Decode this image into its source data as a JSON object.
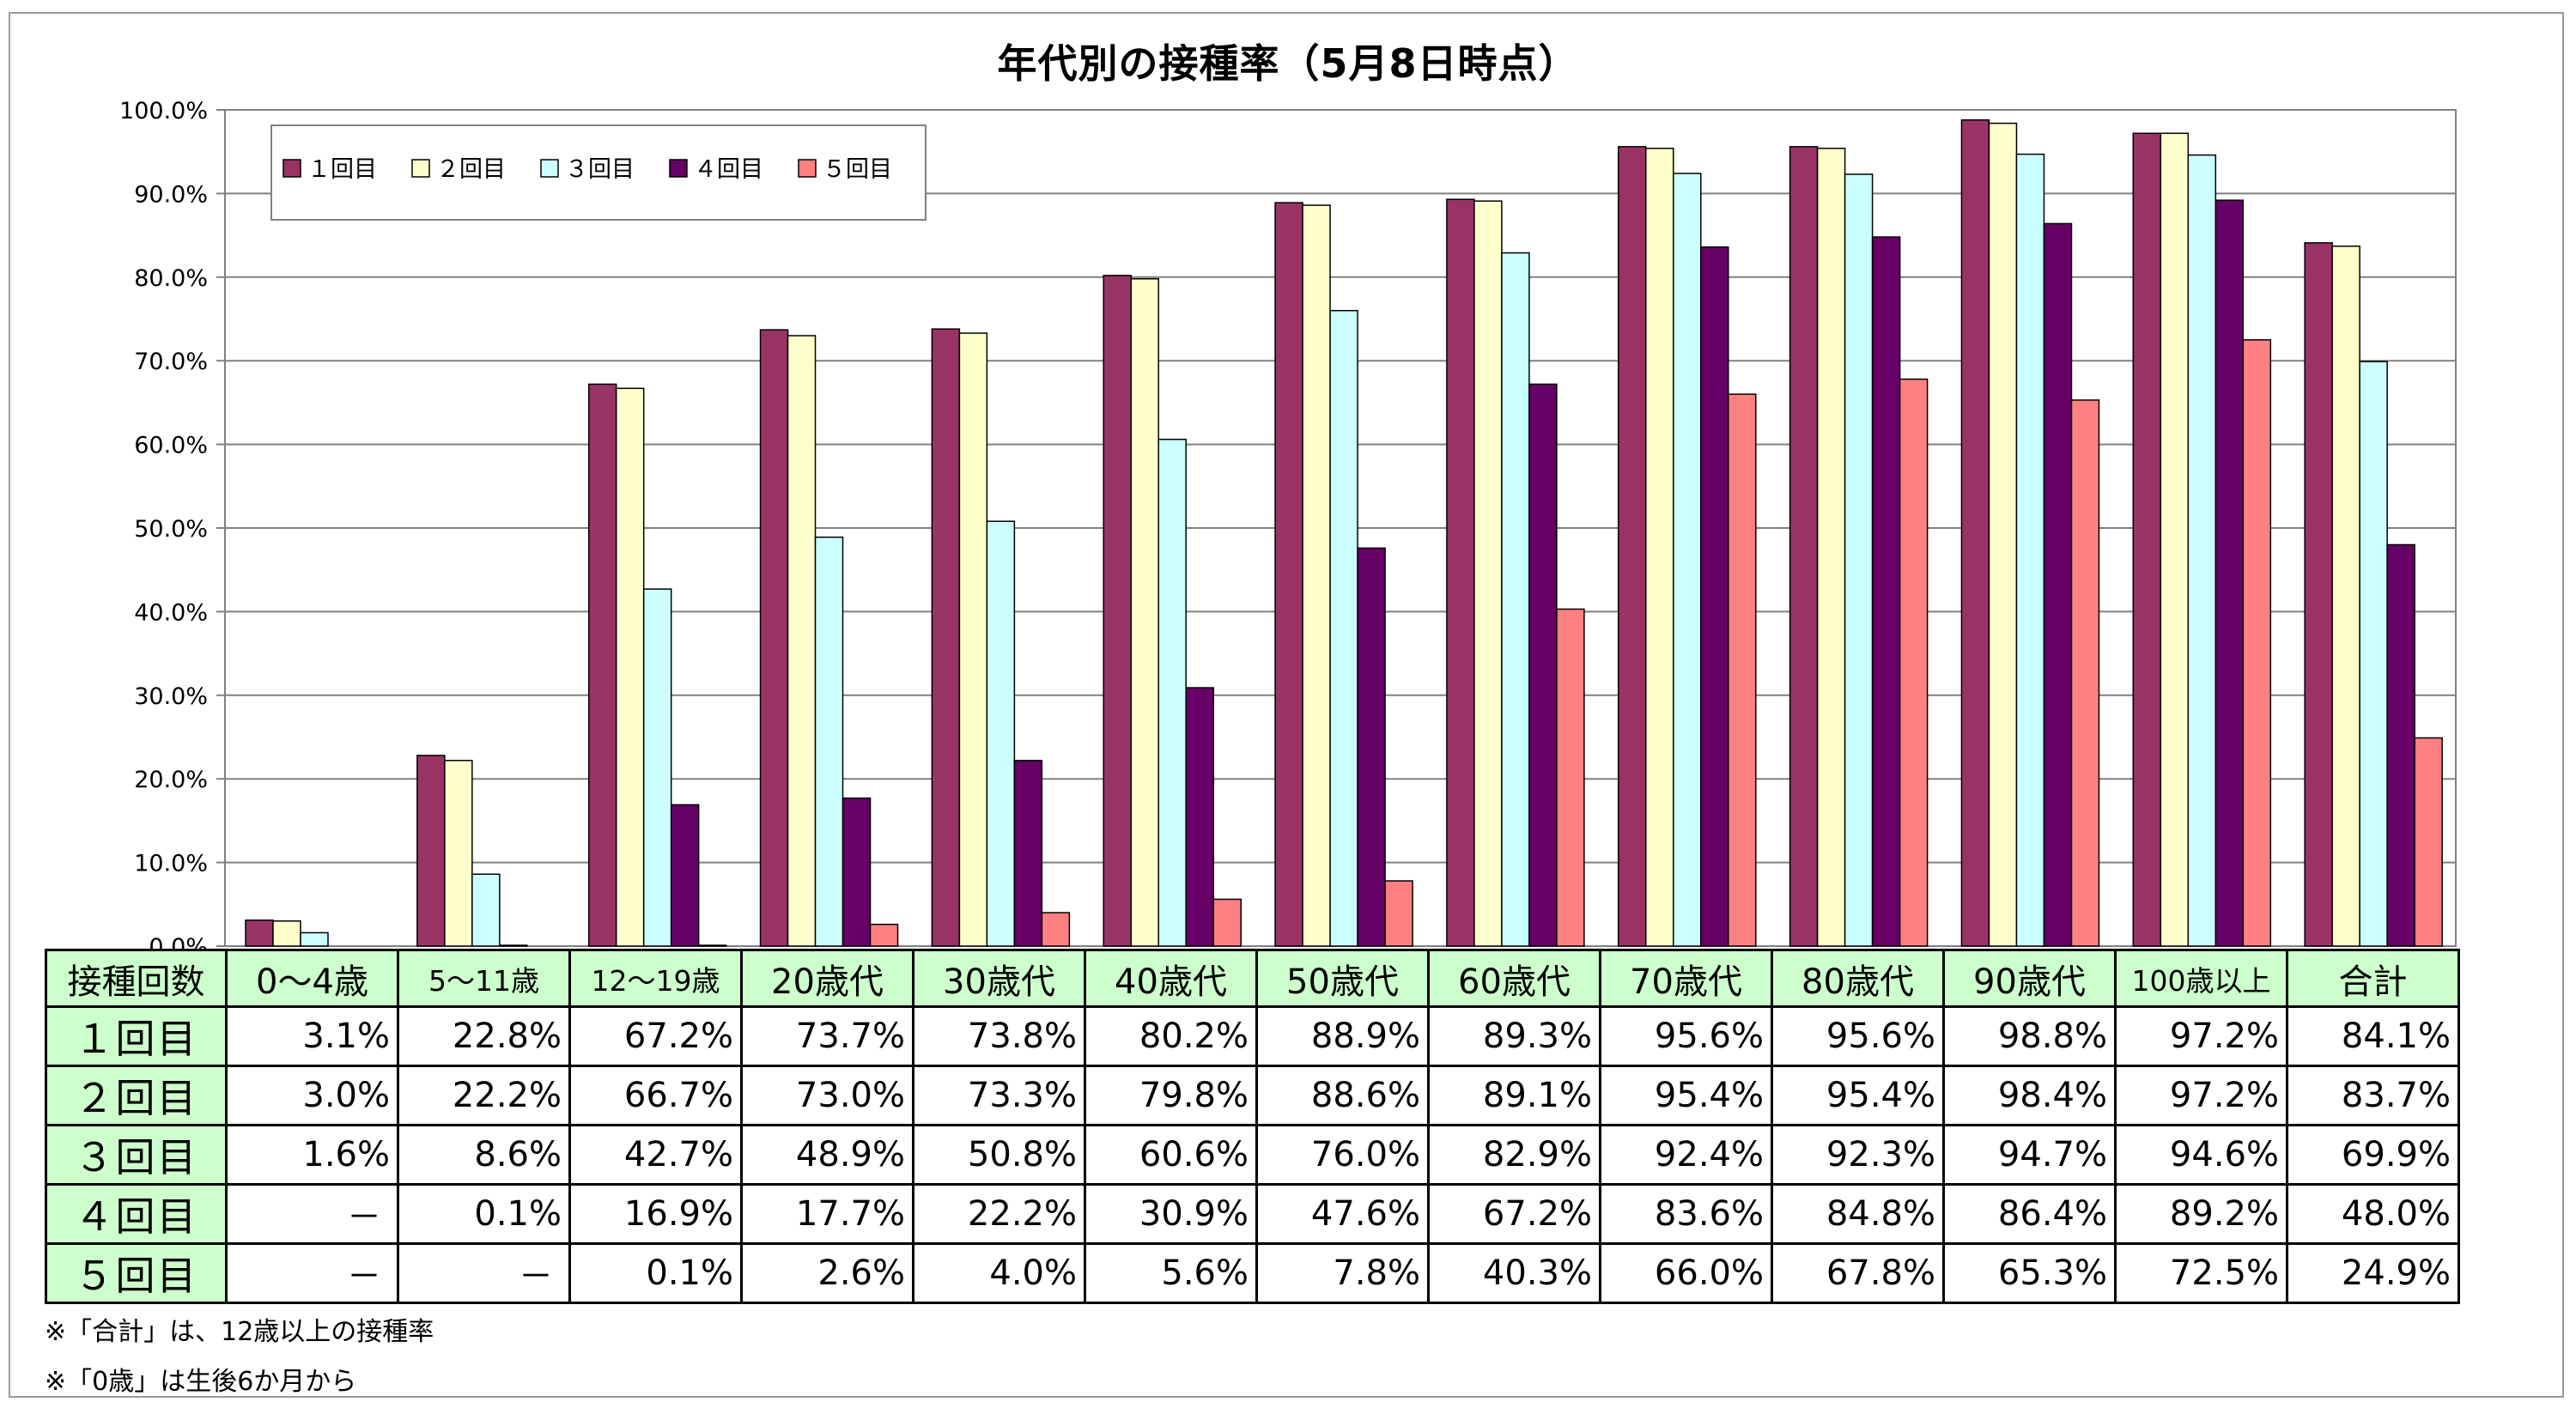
{
  "chart_data": {
    "type": "bar",
    "title": "年代別の接種率（5月8日時点）",
    "categories": [
      "0～4歳",
      "5～11歳",
      "12～19歳",
      "20歳代",
      "30歳代",
      "40歳代",
      "50歳代",
      "60歳代",
      "70歳代",
      "80歳代",
      "90歳代",
      "100歳以上",
      "合計"
    ],
    "series": [
      {
        "name": "１回目",
        "color": "#993366",
        "values": [
          3.1,
          22.8,
          67.2,
          73.7,
          73.8,
          80.2,
          88.9,
          89.3,
          95.6,
          95.6,
          98.8,
          97.2,
          84.1
        ]
      },
      {
        "name": "２回目",
        "color": "#ffffcc",
        "values": [
          3.0,
          22.2,
          66.7,
          73.0,
          73.3,
          79.8,
          88.6,
          89.1,
          95.4,
          95.4,
          98.4,
          97.2,
          83.7
        ]
      },
      {
        "name": "３回目",
        "color": "#ccffff",
        "values": [
          1.6,
          8.6,
          42.7,
          48.9,
          50.8,
          60.6,
          76.0,
          82.9,
          92.4,
          92.3,
          94.7,
          94.6,
          69.9
        ]
      },
      {
        "name": "４回目",
        "color": "#660066",
        "values": [
          null,
          0.1,
          16.9,
          17.7,
          22.2,
          30.9,
          47.6,
          67.2,
          83.6,
          84.8,
          86.4,
          89.2,
          48.0
        ]
      },
      {
        "name": "５回目",
        "color": "#ff8080",
        "values": [
          null,
          null,
          0.1,
          2.6,
          4.0,
          5.6,
          7.8,
          40.3,
          66.0,
          67.8,
          65.3,
          72.5,
          24.9
        ]
      }
    ],
    "yticks": [
      "0.0%",
      "10.0%",
      "20.0%",
      "30.0%",
      "40.0%",
      "50.0%",
      "60.0%",
      "70.0%",
      "80.0%",
      "90.0%",
      "100.0%"
    ],
    "ylim": [
      0,
      100
    ],
    "grid": true,
    "legend_position": "top-left"
  },
  "table": {
    "corner_label": "接種回数",
    "row_labels": [
      "１回目",
      "２回目",
      "３回目",
      "４回目",
      "５回目"
    ],
    "rows": [
      [
        "3.1%",
        "22.8%",
        "67.2%",
        "73.7%",
        "73.8%",
        "80.2%",
        "88.9%",
        "89.3%",
        "95.6%",
        "95.6%",
        "98.8%",
        "97.2%",
        "84.1%"
      ],
      [
        "3.0%",
        "22.2%",
        "66.7%",
        "73.0%",
        "73.3%",
        "79.8%",
        "88.6%",
        "89.1%",
        "95.4%",
        "95.4%",
        "98.4%",
        "97.2%",
        "83.7%"
      ],
      [
        "1.6%",
        "8.6%",
        "42.7%",
        "48.9%",
        "50.8%",
        "60.6%",
        "76.0%",
        "82.9%",
        "92.4%",
        "92.3%",
        "94.7%",
        "94.6%",
        "69.9%"
      ],
      [
        "－",
        "0.1%",
        "16.9%",
        "17.7%",
        "22.2%",
        "30.9%",
        "47.6%",
        "67.2%",
        "83.6%",
        "84.8%",
        "86.4%",
        "89.2%",
        "48.0%"
      ],
      [
        "－",
        "－",
        "0.1%",
        "2.6%",
        "4.0%",
        "5.6%",
        "7.8%",
        "40.3%",
        "66.0%",
        "67.8%",
        "65.3%",
        "72.5%",
        "24.9%"
      ]
    ]
  },
  "notes": [
    "※「合計」は、12歳以上の接種率",
    "※「0歳」は生後6か月から"
  ]
}
